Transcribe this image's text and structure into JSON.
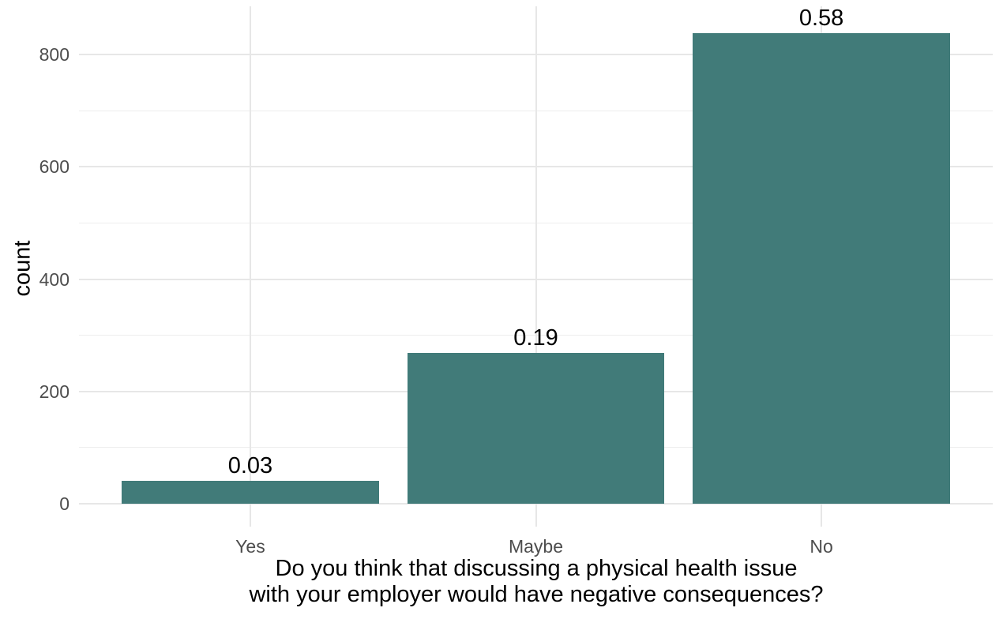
{
  "figure": {
    "background": "#ffffff"
  },
  "chart_data": {
    "type": "bar",
    "title": "",
    "categories": [
      "Yes",
      "Maybe",
      "No"
    ],
    "values": [
      41,
      268,
      838
    ],
    "bar_labels": [
      "0.03",
      "0.19",
      "0.58"
    ],
    "xlabel_lines": [
      "Do you think that discussing a physical health issue",
      "with your employer would have negative consequences?"
    ],
    "ylabel": "count",
    "yticks": [
      0,
      200,
      400,
      600,
      800
    ],
    "minor_yticks": [
      100,
      300,
      500,
      700
    ],
    "ylim": [
      0,
      886
    ],
    "bar_color": "#417b79",
    "grid_color": "#e7e7e7",
    "tick_label_color": "#4d4d4d",
    "text_color": "#000000",
    "grid": "on",
    "legend": "none"
  }
}
